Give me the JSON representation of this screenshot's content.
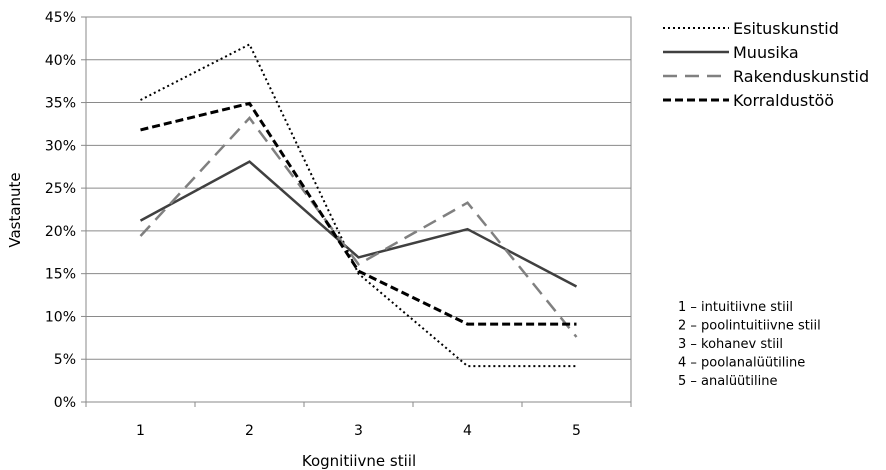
{
  "chart_data": {
    "type": "line",
    "xlabel": "Kognitiivne stiil",
    "ylabel": "Vastanute",
    "categories": [
      "1",
      "2",
      "3",
      "4",
      "5"
    ],
    "ylim": [
      0,
      45
    ],
    "y_ticks": [
      "0%",
      "5%",
      "10%",
      "15%",
      "20%",
      "25%",
      "30%",
      "35%",
      "40%",
      "45%"
    ],
    "grid": "horizontal",
    "legend_position": "right",
    "series": [
      {
        "name": "Esituskunstid",
        "values": [
          35.3,
          41.8,
          15.0,
          4.2,
          4.2
        ],
        "color": "#000000",
        "dash": "dotted"
      },
      {
        "name": "Muusika",
        "values": [
          21.2,
          28.1,
          16.9,
          20.2,
          13.5
        ],
        "color": "#404040",
        "dash": "solid"
      },
      {
        "name": "Rakenduskunstid",
        "values": [
          19.4,
          33.2,
          16.1,
          23.3,
          7.6
        ],
        "color": "#808080",
        "dash": "long-dash"
      },
      {
        "name": "Korraldustöö",
        "values": [
          31.8,
          34.9,
          15.3,
          9.1,
          9.1
        ],
        "color": "#000000",
        "dash": "dash"
      }
    ],
    "notes": [
      "1 – intuitiivne stiil",
      "2 – poolintuitiivne stiil",
      "3 – kohanev stiil",
      "4 – poolanalüütiline",
      "5 – analüütiline"
    ]
  }
}
